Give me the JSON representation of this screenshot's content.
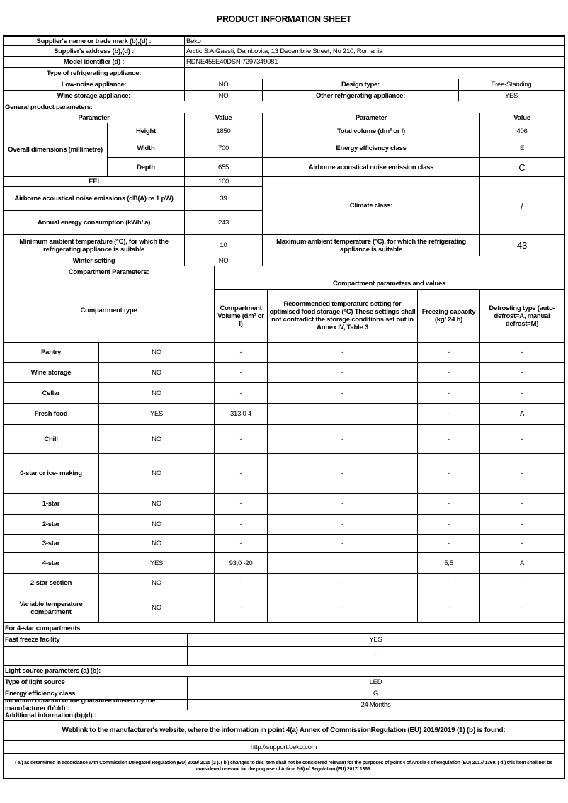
{
  "title": "PRODUCT INFORMATION SHEET",
  "supplier": {
    "name_label": "Supplier's name or trade mark (b),(d) :",
    "name": "Beko",
    "address_label": "Supplier's address (b),(d) :",
    "address": "Arctic S.A  Gaesti, Dambovita, 13 Decembrie Street, No 210, Romania",
    "model_label": "Model identifier (d) :",
    "model": "RDNE455E40DSN 7297349081",
    "type_label": "Type of refrigerating appliance:",
    "low_noise_label": "Low-noise appliance:",
    "low_noise": "NO",
    "design_label": "Design type:",
    "design": "Free-Standing",
    "wine_label": "Wine storage appliance:",
    "wine": "NO",
    "other_label": "Other refrigerating appliance:",
    "other": "YES"
  },
  "general": {
    "section_label": "General product parameters:",
    "param_h": "Parameter",
    "value_h": "Value",
    "param_h2": "Parameter",
    "value_h2": "Value",
    "dims_label": "Overall dimensions (millimetre)",
    "height_label": "Height",
    "height": "1850",
    "width_label": "Width",
    "width": "700",
    "depth_label": "Depth",
    "depth": "655",
    "total_volume_label": "Total volume (dm³ or l)",
    "total_volume": "406",
    "eec_label": "Energy efficiency class",
    "eec": "E",
    "noise_class_label": "Airborne acoustical noise emission class",
    "noise_class": "C",
    "eei_label": "EEI",
    "eei": "100",
    "noise_label": "Airborne acoustical noise emissions (dB(A) re 1 pW)",
    "noise": "39",
    "annual_label": "Annual energy consumption (kWh/ a)",
    "annual": "243",
    "climate_label": "Climate class:",
    "climate": "/",
    "min_amb_label": "Minimum ambient temperature (°C), for which the refrigerating appliance is suitable",
    "min_amb": "10",
    "max_amb_label": "Maximum ambient temperature (°C), for which the refrigerating appliance is suitable",
    "max_amb": "43",
    "winter_label": "Winter setting",
    "winter": "NO"
  },
  "compartments": {
    "section_label": "Compartment Parameters:",
    "type_h": "Compartment type",
    "group_h": "Compartment parameters and values",
    "vol_h": "Compartment Volume (dm³ or l)",
    "temp_h": "Recommended temperature setting for optimised food storage (°C) These settings shall not contradict the storage conditions set out in Annex IV, Table 3",
    "freeze_h": "Freezing capacity (kg/ 24 h)",
    "defrost_h": "Defrosting type (auto-defrost=A, manual defrost=M)",
    "rows": [
      {
        "type": "Pantry",
        "present": "NO",
        "volume": "-",
        "temp": "-",
        "freeze": "-",
        "defrost": "-"
      },
      {
        "type": "Wine storage",
        "present": "NO",
        "volume": "-",
        "temp": "-",
        "freeze": "-",
        "defrost": "-"
      },
      {
        "type": "Cellar",
        "present": "NO",
        "volume": "-",
        "temp": "-",
        "freeze": "-",
        "defrost": "-"
      },
      {
        "type": "Fresh food",
        "present": "YES",
        "volume": "313,0 4",
        "temp": "",
        "freeze": "-",
        "defrost": "A"
      },
      {
        "type": "Chill",
        "present": "NO",
        "volume": "-",
        "temp": "-",
        "freeze": "-",
        "defrost": "-"
      },
      {
        "type": "0-star or ice- making",
        "present": "NO",
        "volume": "-",
        "temp": "-",
        "freeze": "-",
        "defrost": "-"
      },
      {
        "type": "1-star",
        "present": "NO",
        "volume": "-",
        "temp": "-",
        "freeze": "-",
        "defrost": "-"
      },
      {
        "type": "2-star",
        "present": "NO",
        "volume": "-",
        "temp": "-",
        "freeze": "-",
        "defrost": "-"
      },
      {
        "type": "3-star",
        "present": "NO",
        "volume": "-",
        "temp": "-",
        "freeze": "-",
        "defrost": "-"
      },
      {
        "type": "4-star",
        "present": "YES",
        "volume": "93,0 -20",
        "temp": "",
        "freeze": "5,5",
        "defrost": "A"
      },
      {
        "type": "2-star section",
        "present": "NO",
        "volume": "-",
        "temp": "-",
        "freeze": "-",
        "defrost": "-"
      },
      {
        "type": "Variable temperature compartment",
        "present": "NO",
        "volume": "-",
        "temp": "-",
        "freeze": "-",
        "defrost": "-"
      }
    ]
  },
  "four_star": {
    "label": "For 4-star compartments",
    "fast_freeze_label": "Fast freeze facility",
    "fast_freeze": "YES",
    "extra_value": "-"
  },
  "light": {
    "label": "Light source parameters (a) (b):",
    "type_label": "Type of light source",
    "type": "LED",
    "eec_label": "Energy efficiency class",
    "eec": "G"
  },
  "guarantee_label": "Minimum duration of the guarantee offered by the manufacturer (b),(d) :",
  "guarantee": "24 Months",
  "additional_label": "Additional information (b),(d) :",
  "weblink_label": "Weblink to the manufacturer's website, where the information in point 4(a) Annex of CommissionRegulation (EU) 2019/2019 (1) (b) is found:",
  "weblink": "http://support.beko.com",
  "footnote": "( a ) as determined in accordance with Commission Delegated Regulation (EU) 2019/ 2015 (2 ). ( b ) changes to this item shall not be considered relevant for the purposes of point 4 of Article 4 of Regulation (EU) 2017/ 1369. ( d ) this item shall not be considered relevant for the purpose of Article 2(6) of Regulation (EU) 2017/ 1369."
}
